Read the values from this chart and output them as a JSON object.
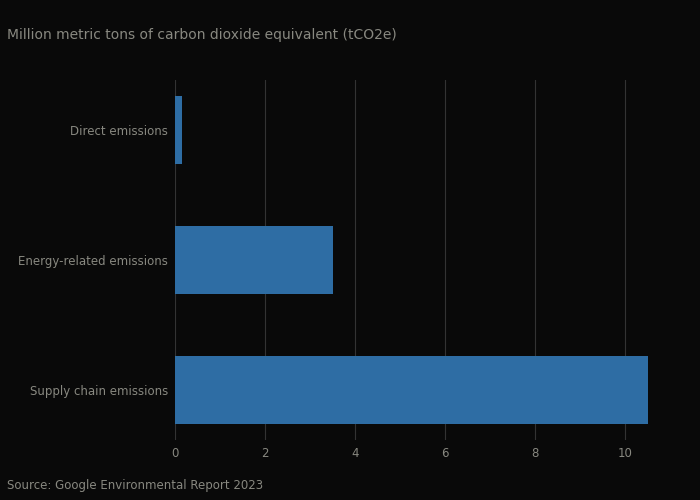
{
  "categories": [
    "Supply chain emissions",
    "Energy-related emissions",
    "Direct emissions"
  ],
  "values": [
    10.5,
    3.5,
    0.15
  ],
  "bar_color": "#2e6da4",
  "ylabel_top": "Million metric tons of carbon dioxide equivalent (tCO2e)",
  "source": "Source: Google Environmental Report 2023",
  "xlim": [
    0,
    11.2
  ],
  "xticks": [
    0,
    2,
    4,
    6,
    8,
    10
  ],
  "background_color": "#090909",
  "text_color": "#888880",
  "bar_height": 0.52,
  "grid_color": "#333333",
  "title_fontsize": 10,
  "label_fontsize": 8.5,
  "tick_fontsize": 8.5,
  "source_fontsize": 8.5
}
